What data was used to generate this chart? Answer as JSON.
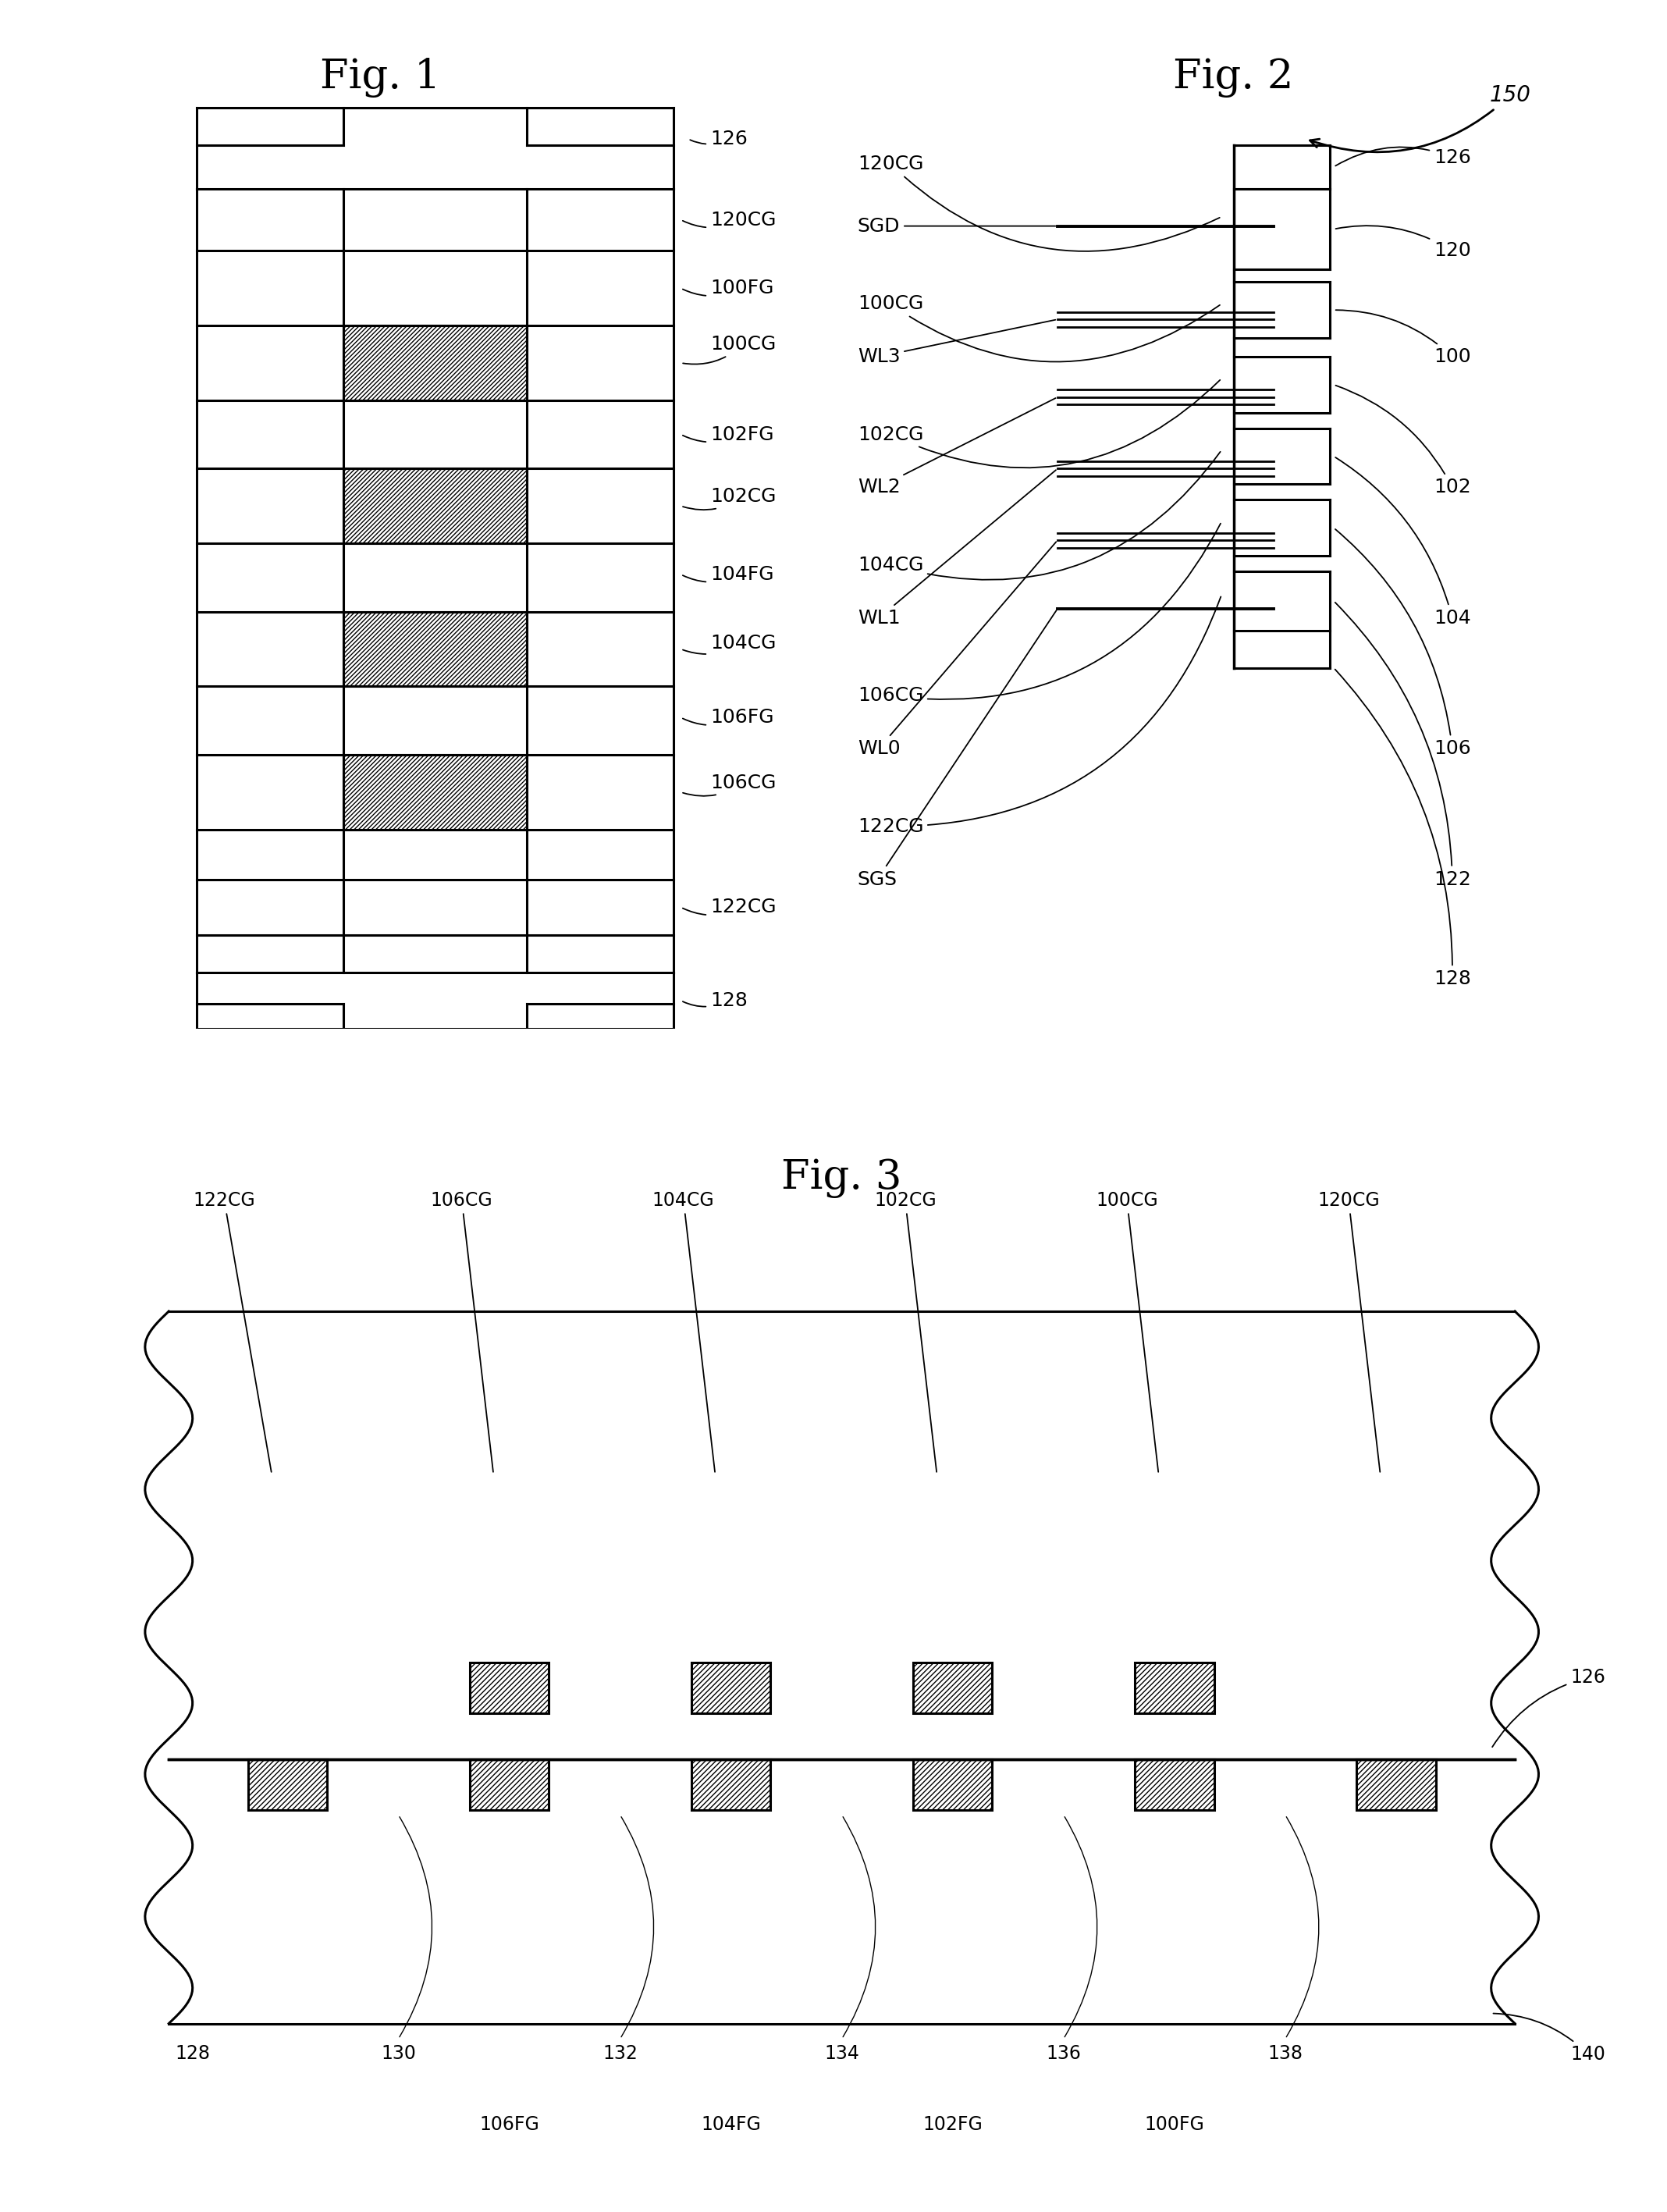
{
  "bg_color": "#ffffff",
  "lc": "#000000",
  "fig1_title": "Fig. 1",
  "fig2_title": "Fig. 2",
  "fig3_title": "Fig. 3"
}
